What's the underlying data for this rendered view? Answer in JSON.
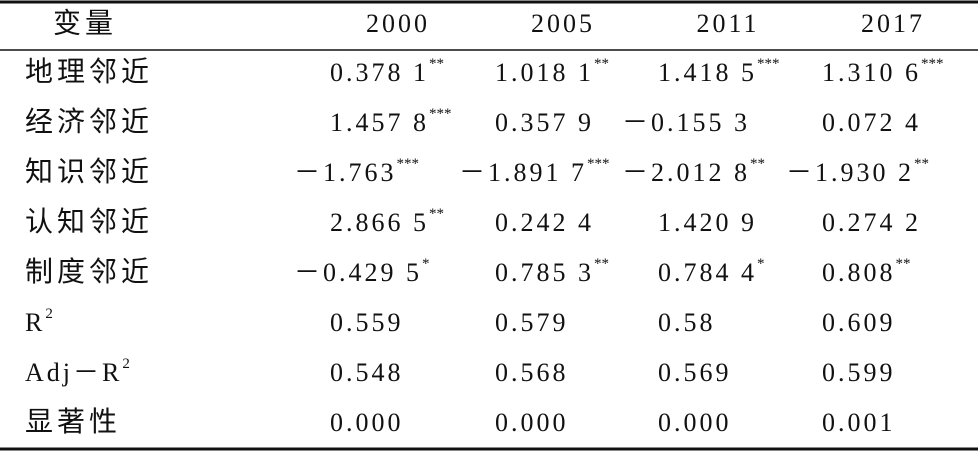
{
  "header": [
    "变量",
    "2000",
    "2005",
    "2011",
    "2017"
  ],
  "rows": [
    {
      "label": {
        "text": "地理邻近"
      },
      "cells": [
        {
          "text": "0.378 1",
          "sup": "**"
        },
        {
          "text": "1.018 1",
          "sup": "**"
        },
        {
          "text": "1.418 5",
          "sup": "***"
        },
        {
          "text": "1.310 6",
          "sup": "***"
        }
      ]
    },
    {
      "label": {
        "text": "经济邻近"
      },
      "cells": [
        {
          "text": "1.457 8",
          "sup": "***"
        },
        {
          "text": "0.357 9"
        },
        {
          "text": "－0.155 3"
        },
        {
          "text": "0.072 4"
        }
      ]
    },
    {
      "label": {
        "text": "知识邻近"
      },
      "cells": [
        {
          "text": "－1.763",
          "sup": "***"
        },
        {
          "text": "－1.891 7",
          "sup": "***"
        },
        {
          "text": "－2.012 8",
          "sup": "**"
        },
        {
          "text": "－1.930 2",
          "sup": "**"
        }
      ]
    },
    {
      "label": {
        "text": "认知邻近"
      },
      "cells": [
        {
          "text": "2.866 5",
          "sup": "**"
        },
        {
          "text": "0.242 4"
        },
        {
          "text": "1.420 9"
        },
        {
          "text": "0.274 2"
        }
      ]
    },
    {
      "label": {
        "text": "制度邻近"
      },
      "cells": [
        {
          "text": "－0.429 5",
          "sup": "*"
        },
        {
          "text": "0.785 3",
          "sup": "**"
        },
        {
          "text": "0.784 4",
          "sup": "*"
        },
        {
          "text": "0.808",
          "sup": "**"
        }
      ]
    },
    {
      "label": {
        "text": "R",
        "sup": "2"
      },
      "cells": [
        {
          "text": "0.559"
        },
        {
          "text": "0.579"
        },
        {
          "text": "0.58"
        },
        {
          "text": "0.609"
        }
      ]
    },
    {
      "label": {
        "text": "Adj－R",
        "sup": "2"
      },
      "cells": [
        {
          "text": "0.548"
        },
        {
          "text": "0.568"
        },
        {
          "text": "0.569"
        },
        {
          "text": "0.599"
        }
      ]
    },
    {
      "label": {
        "text": "显著性"
      },
      "cells": [
        {
          "text": "0.000"
        },
        {
          "text": "0.000"
        },
        {
          "text": "0.000"
        },
        {
          "text": "0.001"
        }
      ]
    }
  ]
}
